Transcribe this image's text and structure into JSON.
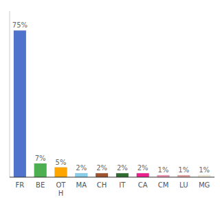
{
  "chart_data": {
    "type": "bar",
    "categories": [
      "FR",
      "BE",
      "OT\nH",
      "MA",
      "CH",
      "IT",
      "CA",
      "CM",
      "LU",
      "MG"
    ],
    "values": [
      75,
      7,
      5,
      2,
      2,
      2,
      2,
      1,
      1,
      1
    ],
    "value_labels": [
      "75%",
      "7%",
      "5%",
      "2%",
      "2%",
      "2%",
      "2%",
      "1%",
      "1%",
      "1%"
    ],
    "colors": [
      "#4f72cc",
      "#4caf50",
      "#ffa500",
      "#87ceeb",
      "#a0522d",
      "#2e6b2e",
      "#e91e8c",
      "#f48fb1",
      "#e8a0a0",
      "#f5f0dc"
    ],
    "ylim": [
      0,
      85
    ],
    "data_labels": true,
    "tick_labels": "x",
    "grid": false
  }
}
